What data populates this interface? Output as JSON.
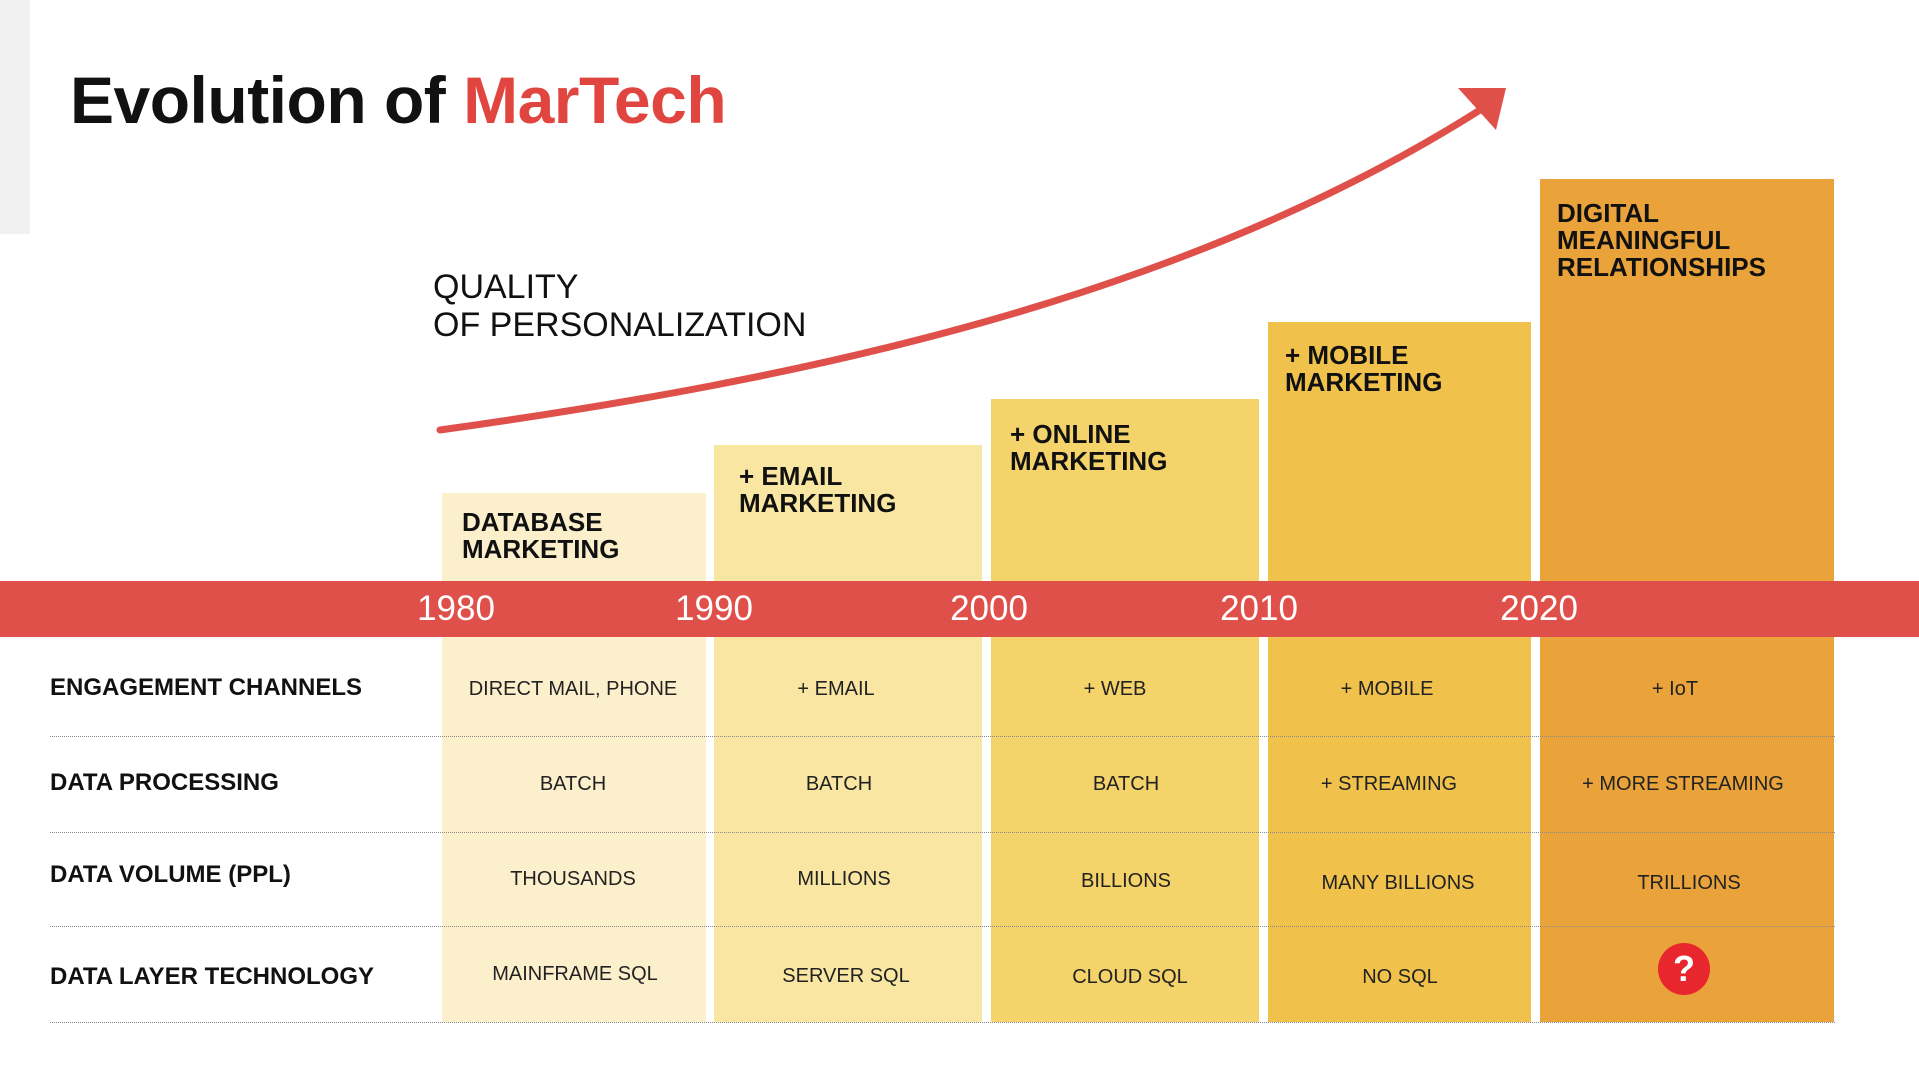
{
  "title": {
    "prefix": "Evolution of",
    "highlight": "MarTech"
  },
  "quality_label": {
    "line1": "QUALITY",
    "line2": "OF PERSONALIZATION"
  },
  "stages": [
    {
      "label_lines": [
        "DATABASE",
        "MARKETING"
      ],
      "color": "#fcf0cc"
    },
    {
      "label_lines": [
        "+ EMAIL",
        "MARKETING"
      ],
      "color": "#f9e6a2"
    },
    {
      "label_lines": [
        "+ ONLINE",
        "MARKETING"
      ],
      "color": "#f4d36a"
    },
    {
      "label_lines": [
        "+ MOBILE",
        "MARKETING"
      ],
      "color": "#f0c24c"
    },
    {
      "label_lines": [
        "DIGITAL",
        "MEANINGFUL",
        "RELATIONSHIPS"
      ],
      "color": "#eaa33a"
    }
  ],
  "timeline": {
    "color": "#e0504a",
    "years": [
      "1980",
      "1990",
      "2000",
      "2010",
      "2020"
    ]
  },
  "rows": [
    {
      "label": "ENGAGEMENT CHANNELS",
      "cells": [
        "DIRECT MAIL, PHONE",
        "+ EMAIL",
        "+ WEB",
        "+ MOBILE",
        "+ IoT"
      ]
    },
    {
      "label": "DATA PROCESSING",
      "cells": [
        "BATCH",
        "BATCH",
        "BATCH",
        "+ STREAMING",
        "+ MORE STREAMING"
      ]
    },
    {
      "label": "DATA VOLUME (PPL)",
      "cells": [
        "THOUSANDS",
        "MILLIONS",
        "BILLIONS",
        "MANY BILLIONS",
        "TRILLIONS"
      ]
    },
    {
      "label": "DATA LAYER TECHNOLOGY",
      "cells": [
        "MAINFRAME SQL",
        "SERVER SQL",
        "CLOUD SQL",
        "NO SQL",
        "?"
      ]
    }
  ],
  "colors": {
    "accent": "#e0453f",
    "question_badge": "#e8262d"
  }
}
